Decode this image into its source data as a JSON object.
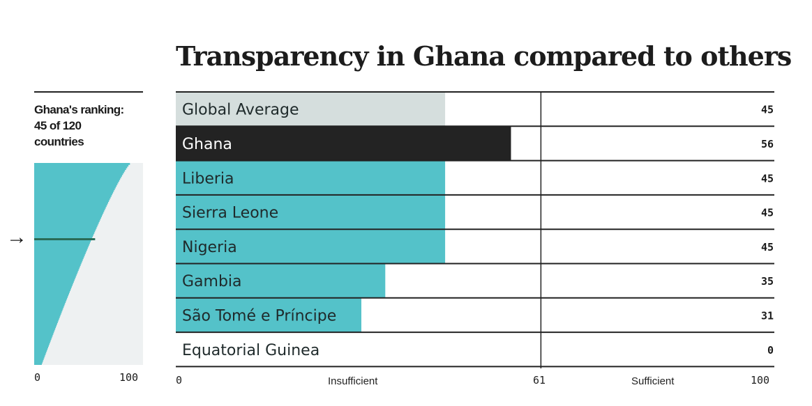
{
  "title": "Transparency in Ghana compared to others",
  "ranking": {
    "line1": "Ghana's ranking:",
    "line2": "45 of 120",
    "line3": "countries",
    "arrow": "→",
    "axis_min": "0",
    "axis_max": "100"
  },
  "chart_data": {
    "type": "bar",
    "orientation": "horizontal",
    "xlim": [
      0,
      100
    ],
    "threshold": 61,
    "categories": [
      "Global Average",
      "Ghana",
      "Liberia",
      "Sierra Leone",
      "Nigeria",
      "Gambia",
      "São Tomé e Príncipe",
      "Equatorial Guinea"
    ],
    "values": [
      45,
      56,
      45,
      45,
      45,
      35,
      31,
      0
    ],
    "bar_colors": [
      "#d5dedd",
      "#232323",
      "#54c2c9",
      "#54c2c9",
      "#54c2c9",
      "#54c2c9",
      "#54c2c9",
      "#54c2c9"
    ],
    "x_ticks": [
      "0",
      "61",
      "100"
    ],
    "zone_labels": [
      "Insufficient",
      "Sufficient"
    ],
    "distribution": {
      "count": 120,
      "ghana_rank": 45,
      "color": "#54c2c9",
      "background": "#eef1f2",
      "highlight_color": "#2a6b56"
    }
  }
}
